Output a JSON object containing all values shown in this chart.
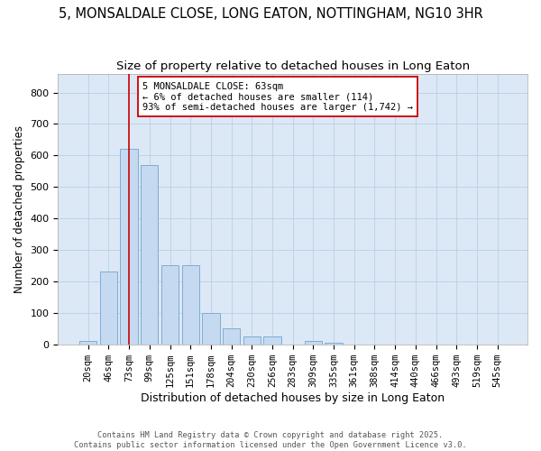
{
  "title": "5, MONSALDALE CLOSE, LONG EATON, NOTTINGHAM, NG10 3HR",
  "subtitle": "Size of property relative to detached houses in Long Eaton",
  "xlabel": "Distribution of detached houses by size in Long Eaton",
  "ylabel": "Number of detached properties",
  "categories": [
    "20sqm",
    "46sqm",
    "73sqm",
    "99sqm",
    "125sqm",
    "151sqm",
    "178sqm",
    "204sqm",
    "230sqm",
    "256sqm",
    "283sqm",
    "309sqm",
    "335sqm",
    "361sqm",
    "388sqm",
    "414sqm",
    "440sqm",
    "466sqm",
    "493sqm",
    "519sqm",
    "545sqm"
  ],
  "values": [
    10,
    230,
    620,
    570,
    250,
    250,
    100,
    50,
    25,
    25,
    0,
    10,
    5,
    0,
    0,
    0,
    0,
    0,
    0,
    0,
    0
  ],
  "bar_color": "#c5d9f0",
  "bar_edge_color": "#7dadd4",
  "vline_x": 2,
  "vline_color": "#cc0000",
  "annotation_text": "5 MONSALDALE CLOSE: 63sqm\n← 6% of detached houses are smaller (114)\n93% of semi-detached houses are larger (1,742) →",
  "annotation_box_facecolor": "#ffffff",
  "annotation_box_edgecolor": "#cc0000",
  "ylim": [
    0,
    860
  ],
  "yticks": [
    0,
    100,
    200,
    300,
    400,
    500,
    600,
    700,
    800
  ],
  "title_fontsize": 10.5,
  "subtitle_fontsize": 9.5,
  "ylabel_fontsize": 8.5,
  "xlabel_fontsize": 9,
  "tick_fontsize": 8,
  "xtick_fontsize": 7.5,
  "figure_facecolor": "#ffffff",
  "axes_facecolor": "#dce8f5",
  "grid_color": "#b8cfe8",
  "footer_line1": "Contains HM Land Registry data © Crown copyright and database right 2025.",
  "footer_line2": "Contains public sector information licensed under the Open Government Licence v3.0."
}
